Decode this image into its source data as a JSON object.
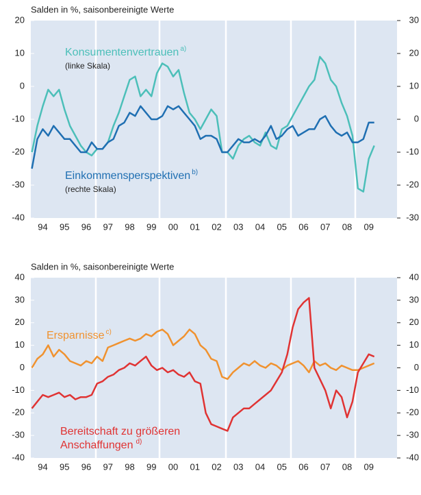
{
  "chart_data": [
    {
      "type": "line",
      "y_label": "Salden in %, saisonbereinigte Werte",
      "xlim": [
        1993.95,
        2010.8
      ],
      "xticks": [
        {
          "value": 1994.5,
          "label": "94"
        },
        {
          "value": 1995.5,
          "label": "95"
        },
        {
          "value": 1996.5,
          "label": "96"
        },
        {
          "value": 1997.5,
          "label": "97"
        },
        {
          "value": 1998.5,
          "label": "98"
        },
        {
          "value": 1999.5,
          "label": "99"
        },
        {
          "value": 2000.5,
          "label": "00"
        },
        {
          "value": 2001.5,
          "label": "01"
        },
        {
          "value": 2002.5,
          "label": "02"
        },
        {
          "value": 2003.5,
          "label": "03"
        },
        {
          "value": 2004.5,
          "label": "04"
        },
        {
          "value": 2005.5,
          "label": "05"
        },
        {
          "value": 2006.5,
          "label": "06"
        },
        {
          "value": 2007.5,
          "label": "07"
        },
        {
          "value": 2008.5,
          "label": "08"
        },
        {
          "value": 2009.5,
          "label": "09"
        }
      ],
      "ylim": [
        -40,
        20
      ],
      "yticks": [
        20,
        10,
        0,
        -10,
        -20,
        -30,
        -40
      ],
      "y2lim": [
        -30,
        30
      ],
      "y2ticks": [
        30,
        20,
        10,
        0,
        -10,
        -20,
        -30
      ],
      "x": [
        1994,
        1994.25,
        1994.5,
        1994.75,
        1995,
        1995.25,
        1995.5,
        1995.75,
        1996,
        1996.25,
        1996.5,
        1996.75,
        1997,
        1997.25,
        1997.5,
        1997.75,
        1998,
        1998.25,
        1998.5,
        1998.75,
        1999,
        1999.25,
        1999.5,
        1999.75,
        2000,
        2000.25,
        2000.5,
        2000.75,
        2001,
        2001.25,
        2001.5,
        2001.75,
        2002,
        2002.25,
        2002.5,
        2002.75,
        2003,
        2003.25,
        2003.5,
        2003.75,
        2004,
        2004.25,
        2004.5,
        2004.75,
        2005,
        2005.25,
        2005.5,
        2005.75,
        2006,
        2006.25,
        2006.5,
        2006.75,
        2007,
        2007.25,
        2007.5,
        2007.75,
        2008,
        2008.25,
        2008.5,
        2008.75,
        2009,
        2009.25,
        2009.5,
        2009.75
      ],
      "series": [
        {
          "name": "Konsumentenvertrauen",
          "color": "#4cbfb9",
          "axis": "y",
          "values": [
            -20,
            -12,
            -6,
            -1,
            -3,
            -1,
            -7,
            -12,
            -15,
            -18,
            -20,
            -21,
            -19,
            -19,
            -17,
            -12,
            -8,
            -3,
            2,
            3,
            -3,
            -1,
            -3,
            4,
            7,
            6,
            3,
            5,
            -2,
            -8,
            -10,
            -13,
            -10,
            -7,
            -9,
            -20,
            -20,
            -22,
            -18,
            -16,
            -15,
            -17,
            -18,
            -14,
            -18,
            -19,
            -13,
            -12,
            -9,
            -6,
            -3,
            0,
            2,
            9,
            7,
            2,
            0,
            -5,
            -9,
            -15,
            -31,
            -32,
            -22,
            -18
          ]
        },
        {
          "name": "Einkommensperspektiven",
          "color": "#1f6fb2",
          "axis": "y2",
          "values": [
            -15,
            -6,
            -3,
            -5,
            -2,
            -4,
            -6,
            -6,
            -8,
            -10,
            -10,
            -7,
            -9,
            -9,
            -7,
            -6,
            -2,
            -1,
            2,
            1,
            4,
            2,
            0,
            0,
            1,
            4,
            3,
            4,
            2,
            0,
            -2,
            -6,
            -5,
            -5,
            -6,
            -10,
            -10,
            -8,
            -6,
            -7,
            -7,
            -6,
            -7,
            -5,
            -2,
            -6,
            -5,
            -3,
            -2,
            -5,
            -4,
            -3,
            -3,
            0,
            1,
            -2,
            -4,
            -5,
            -4,
            -7,
            -7,
            -6,
            -1,
            -1
          ]
        }
      ],
      "annotations": [
        {
          "text": "Konsumentenvertrauen",
          "note": "a)",
          "sub": "(linke Skala)"
        },
        {
          "text": "Einkommensperspektiven",
          "note": "b)",
          "sub": "(rechte Skala)"
        }
      ]
    },
    {
      "type": "line",
      "y_label": "Salden in %, saisonbereinigte Werte",
      "xlim": [
        1993.95,
        2010.8
      ],
      "xticks": [
        {
          "value": 1994.5,
          "label": "94"
        },
        {
          "value": 1995.5,
          "label": "95"
        },
        {
          "value": 1996.5,
          "label": "96"
        },
        {
          "value": 1997.5,
          "label": "97"
        },
        {
          "value": 1998.5,
          "label": "98"
        },
        {
          "value": 1999.5,
          "label": "99"
        },
        {
          "value": 2000.5,
          "label": "00"
        },
        {
          "value": 2001.5,
          "label": "01"
        },
        {
          "value": 2002.5,
          "label": "02"
        },
        {
          "value": 2003.5,
          "label": "03"
        },
        {
          "value": 2004.5,
          "label": "04"
        },
        {
          "value": 2005.5,
          "label": "05"
        },
        {
          "value": 2006.5,
          "label": "06"
        },
        {
          "value": 2007.5,
          "label": "07"
        },
        {
          "value": 2008.5,
          "label": "08"
        },
        {
          "value": 2009.5,
          "label": "09"
        }
      ],
      "ylim": [
        -40,
        40
      ],
      "yticks": [
        40,
        30,
        20,
        10,
        0,
        -10,
        -20,
        -30,
        -40
      ],
      "y2lim": [
        -40,
        40
      ],
      "y2ticks": [
        40,
        30,
        20,
        10,
        0,
        -10,
        -20,
        -30,
        -40
      ],
      "x": [
        1994,
        1994.25,
        1994.5,
        1994.75,
        1995,
        1995.25,
        1995.5,
        1995.75,
        1996,
        1996.25,
        1996.5,
        1996.75,
        1997,
        1997.25,
        1997.5,
        1997.75,
        1998,
        1998.25,
        1998.5,
        1998.75,
        1999,
        1999.25,
        1999.5,
        1999.75,
        2000,
        2000.25,
        2000.5,
        2000.75,
        2001,
        2001.25,
        2001.5,
        2001.75,
        2002,
        2002.25,
        2002.5,
        2002.75,
        2003,
        2003.25,
        2003.5,
        2003.75,
        2004,
        2004.25,
        2004.5,
        2004.75,
        2005,
        2005.25,
        2005.5,
        2005.75,
        2006,
        2006.25,
        2006.5,
        2006.75,
        2007,
        2007.25,
        2007.5,
        2007.75,
        2008,
        2008.25,
        2008.5,
        2008.75,
        2009,
        2009.25,
        2009.5,
        2009.75
      ],
      "series": [
        {
          "name": "Ersparnisse",
          "color": "#f0922f",
          "axis": "y",
          "values": [
            0,
            4,
            6,
            10,
            5,
            8,
            6,
            3,
            2,
            1,
            3,
            2,
            5,
            3,
            9,
            10,
            11,
            12,
            13,
            12,
            13,
            15,
            14,
            16,
            17,
            15,
            10,
            12,
            14,
            17,
            15,
            10,
            8,
            4,
            3,
            -4,
            -5,
            -2,
            0,
            2,
            1,
            3,
            1,
            0,
            2,
            1,
            -1,
            1,
            2,
            3,
            1,
            -2,
            3,
            1,
            2,
            0,
            -1,
            1,
            0,
            -1,
            -1,
            0,
            1,
            2
          ]
        },
        {
          "name": "Bereitschaft zu größeren Anschaffungen",
          "color": "#e03333",
          "axis": "y",
          "values": [
            -18,
            -15,
            -12,
            -13,
            -12,
            -11,
            -13,
            -12,
            -14,
            -13,
            -13,
            -12,
            -7,
            -6,
            -4,
            -3,
            -1,
            0,
            2,
            1,
            3,
            5,
            1,
            -1,
            0,
            -2,
            -1,
            -3,
            -4,
            -2,
            -6,
            -7,
            -20,
            -25,
            -26,
            -27,
            -28,
            -22,
            -20,
            -18,
            -18,
            -16,
            -14,
            -12,
            -10,
            -6,
            -2,
            6,
            18,
            26,
            29,
            31,
            0,
            -5,
            -10,
            -18,
            -10,
            -13,
            -22,
            -15,
            -2,
            2,
            6,
            5
          ]
        }
      ],
      "annotations": [
        {
          "text": "Ersparnisse",
          "note": "c)"
        },
        {
          "text": "Bereitschaft zu größeren",
          "text2": "Anschaffungen",
          "note": "d)"
        }
      ]
    }
  ]
}
